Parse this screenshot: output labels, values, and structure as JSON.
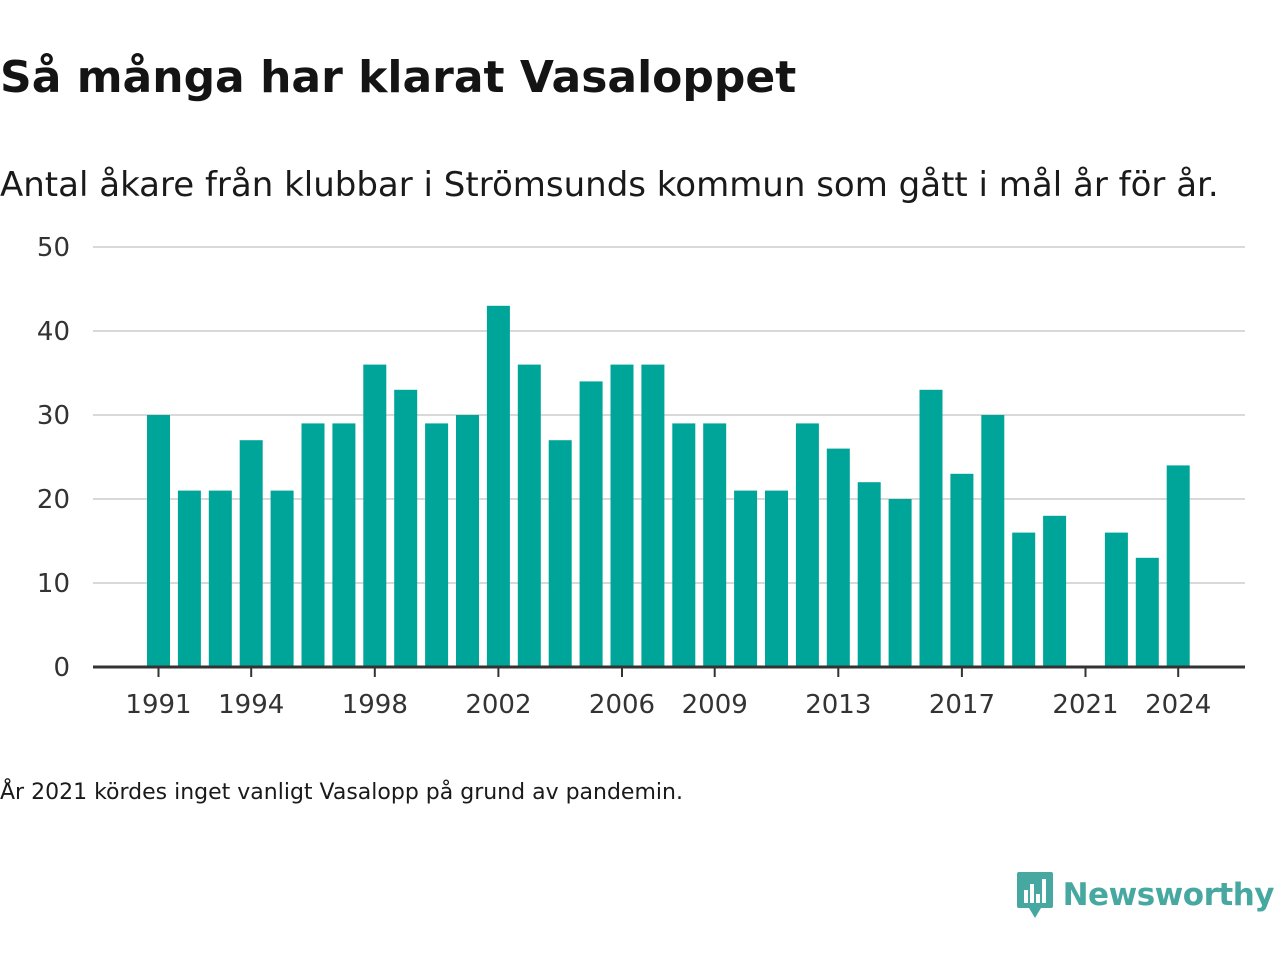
{
  "title": "Så många har klarat Vasaloppet",
  "subtitle": "Antal åkare från klubbar i Strömsunds kommun som gått i mål år för år.",
  "footnote": "År 2021 kördes inget vanligt Vasalopp på grund av pandemin.",
  "brand": {
    "name": "Newsworthy",
    "icon": "newsworthy-logo-icon",
    "color": "#46a8a0"
  },
  "colors": {
    "bar": "#00a59a",
    "grid": "#d9d9d9",
    "axis": "#333333"
  },
  "chart_data": {
    "type": "bar",
    "title": "Så många har klarat Vasaloppet",
    "subtitle": "Antal åkare från klubbar i Strömsunds kommun som gått i mål år för år.",
    "xlabel": "",
    "ylabel": "",
    "ylim": [
      0,
      50
    ],
    "y_ticks": [
      0,
      10,
      20,
      30,
      40,
      50
    ],
    "x_tick_labels": [
      "1991",
      "1994",
      "1998",
      "2002",
      "2006",
      "2009",
      "2013",
      "2017",
      "2021",
      "2024"
    ],
    "grid": "horizontal",
    "categories": [
      1991,
      1992,
      1993,
      1994,
      1995,
      1996,
      1997,
      1998,
      1999,
      2000,
      2001,
      2002,
      2003,
      2004,
      2005,
      2006,
      2007,
      2008,
      2009,
      2010,
      2011,
      2012,
      2013,
      2014,
      2015,
      2016,
      2017,
      2018,
      2019,
      2020,
      2021,
      2022,
      2023,
      2024
    ],
    "values": [
      30,
      21,
      21,
      27,
      21,
      29,
      29,
      36,
      33,
      29,
      30,
      43,
      36,
      27,
      34,
      36,
      36,
      29,
      29,
      21,
      21,
      29,
      26,
      22,
      20,
      33,
      23,
      30,
      16,
      18,
      null,
      16,
      13,
      24
    ]
  }
}
